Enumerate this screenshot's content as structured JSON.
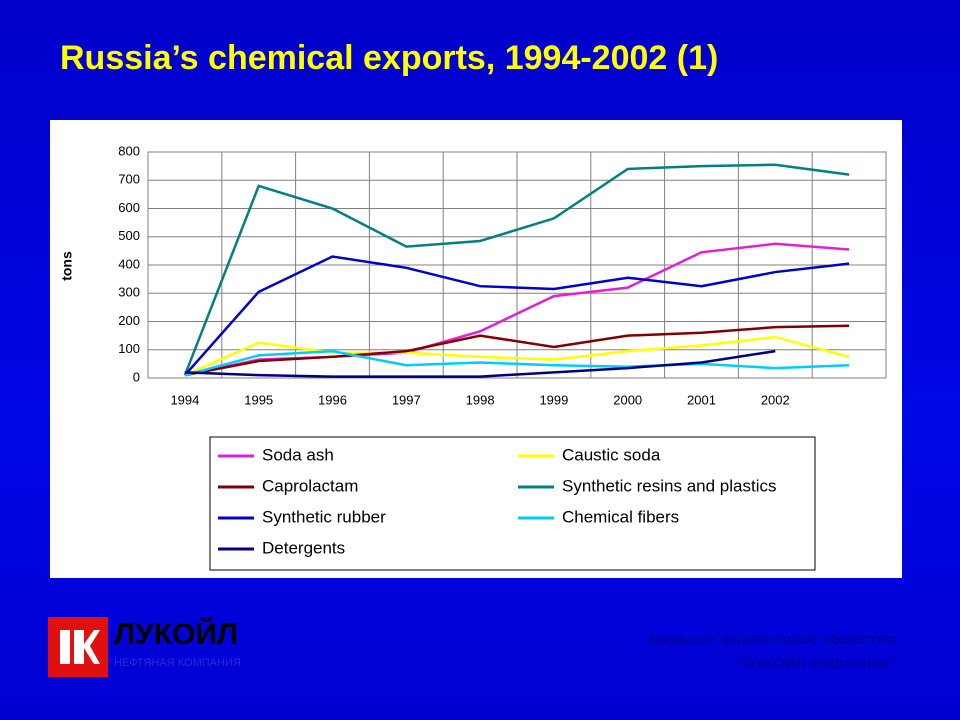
{
  "chart_data": {
    "type": "line",
    "title": "Russia’s chemical exports, 1994-2002 (1)",
    "y_label": "tons",
    "categories": [
      "1994",
      "1995",
      "1996",
      "1997",
      "1998",
      "1999",
      "2000",
      "2001",
      "2002",
      null
    ],
    "ylim": [
      0,
      800
    ],
    "yticks": [
      0,
      100,
      200,
      300,
      400,
      500,
      600,
      700,
      800
    ],
    "grid": true,
    "series": [
      {
        "name": "Soda ash",
        "color": "#e020d8",
        "values": [
          10,
          65,
          75,
          90,
          165,
          290,
          320,
          445,
          475,
          455
        ]
      },
      {
        "name": "Caustic soda",
        "color": "#ffff00",
        "values": [
          10,
          125,
          90,
          90,
          75,
          65,
          95,
          115,
          145,
          75
        ]
      },
      {
        "name": "Caprolactam",
        "color": "#800000",
        "values": [
          10,
          60,
          75,
          95,
          150,
          110,
          150,
          160,
          180,
          185
        ]
      },
      {
        "name": "Synthetic resins and plastics",
        "color": "#008080",
        "values": [
          10,
          680,
          600,
          465,
          485,
          565,
          740,
          750,
          755,
          720
        ]
      },
      {
        "name": "Synthetic rubber",
        "color": "#0000cc",
        "values": [
          10,
          305,
          430,
          390,
          325,
          315,
          355,
          325,
          375,
          405
        ]
      },
      {
        "name": "Chemical  fibers",
        "color": "#00ccff",
        "values": [
          10,
          80,
          95,
          45,
          55,
          45,
          40,
          50,
          35,
          45
        ]
      },
      {
        "name": "Detergents",
        "color": "#000080",
        "values": [
          20,
          10,
          5,
          5,
          5,
          20,
          35,
          55,
          95,
          null
        ]
      }
    ]
  },
  "logo": {
    "name": "ЛУКОЙЛ",
    "tagline": "НЕФТЯНАЯ КОМПАНИЯ"
  },
  "footer": [
    "Закрытое акционерное общество",
    "“ЛУКОЙЛ-Нефтехим”"
  ]
}
